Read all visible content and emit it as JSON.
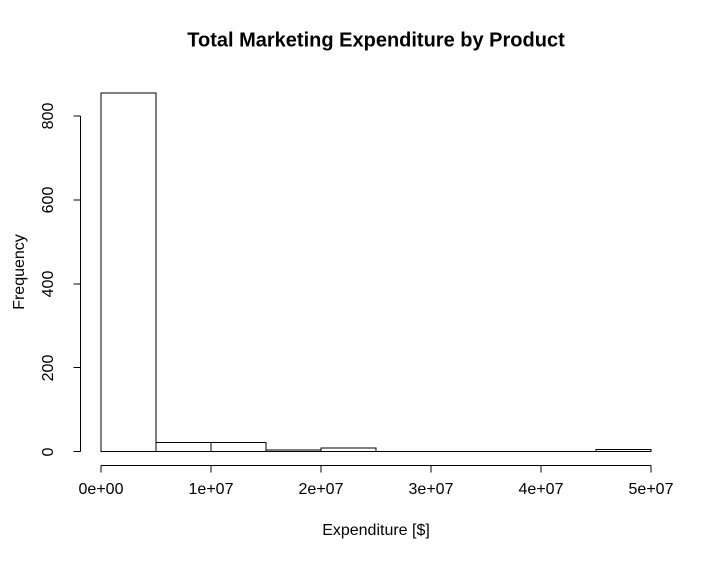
{
  "chart_data": {
    "type": "bar",
    "subtype": "histogram",
    "title": "Total Marketing Expenditure by Product",
    "xlabel": "Expenditure [$]",
    "ylabel": "Frequency",
    "bin_edges": [
      0,
      5000000,
      10000000,
      15000000,
      20000000,
      25000000,
      30000000,
      35000000,
      40000000,
      45000000,
      50000000
    ],
    "counts": [
      855,
      22,
      22,
      4,
      8,
      0,
      0,
      0,
      0,
      5
    ],
    "xlim": [
      0,
      50000000
    ],
    "ylim": [
      0,
      855
    ],
    "x_ticks": [
      {
        "value": 0,
        "label": "0e+00"
      },
      {
        "value": 10000000,
        "label": "1e+07"
      },
      {
        "value": 20000000,
        "label": "2e+07"
      },
      {
        "value": 30000000,
        "label": "3e+07"
      },
      {
        "value": 40000000,
        "label": "4e+07"
      },
      {
        "value": 50000000,
        "label": "5e+07"
      }
    ],
    "y_ticks": [
      {
        "value": 0,
        "label": "0"
      },
      {
        "value": 200,
        "label": "200"
      },
      {
        "value": 400,
        "label": "400"
      },
      {
        "value": 600,
        "label": "600"
      },
      {
        "value": 800,
        "label": "800"
      }
    ],
    "grid": false,
    "legend_position": "none",
    "bar_fill": "#ffffff",
    "bar_stroke": "#000000",
    "axis_color": "#000000",
    "text_color": "#000000",
    "background": "#ffffff"
  }
}
